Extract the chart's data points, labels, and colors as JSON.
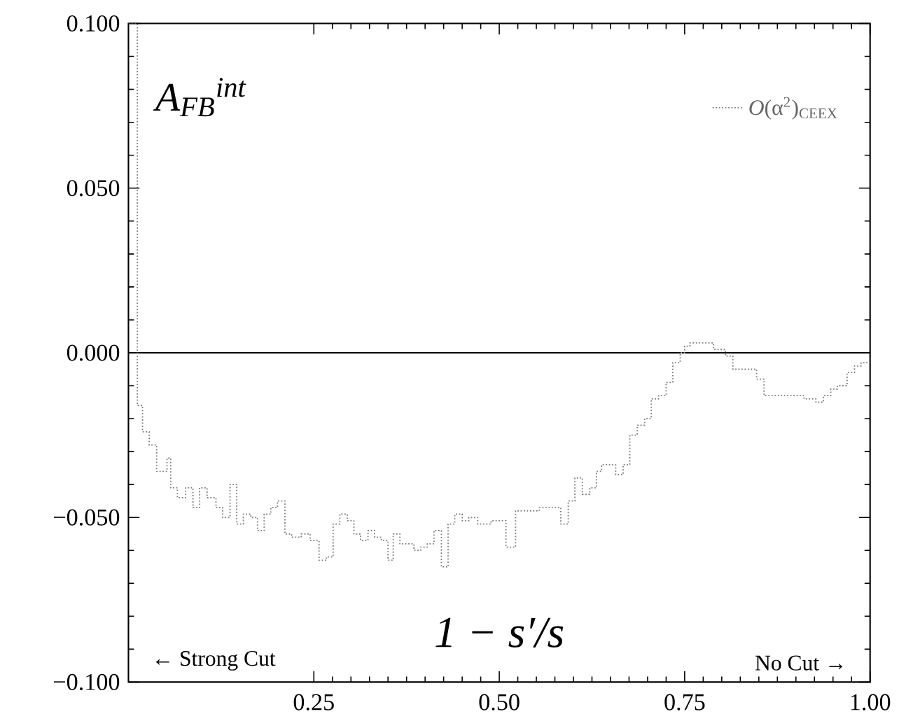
{
  "chart_data": {
    "type": "step",
    "ylabel": "A$_{FB}$$^{int}$",
    "xlabel": "1 − s′/s",
    "annotations": [
      "← Strong Cut",
      "No Cut →"
    ],
    "xlim": [
      0,
      1
    ],
    "ylim": [
      -0.1,
      0.1
    ],
    "xticks": [
      0.25,
      {
        "value": 0.5,
        "label": "0.50"
      },
      0.75,
      {
        "value": 1,
        "label": "1.00"
      }
    ],
    "yticks": [
      {
        "value": -0.1,
        "label": "−0.100"
      },
      {
        "value": -0.05,
        "label": "−0.050"
      },
      {
        "value": 0,
        "label": "0.000"
      },
      {
        "value": 0.05,
        "label": "0.050"
      },
      {
        "value": 0.1,
        "label": "0.100"
      }
    ],
    "ref_lines": [
      {
        "axis": "y",
        "value": 0,
        "color": "#000000"
      }
    ],
    "legend": "top right",
    "line_style": "dotted",
    "grid": false,
    "x": [
      0.0,
      0.012,
      0.019,
      0.028,
      0.038,
      0.052,
      0.057,
      0.066,
      0.077,
      0.087,
      0.096,
      0.106,
      0.118,
      0.127,
      0.137,
      0.146,
      0.155,
      0.165,
      0.174,
      0.183,
      0.192,
      0.201,
      0.211,
      0.22,
      0.233,
      0.245,
      0.257,
      0.267,
      0.276,
      0.285,
      0.295,
      0.304,
      0.313,
      0.323,
      0.332,
      0.341,
      0.35,
      0.357,
      0.366,
      0.375,
      0.385,
      0.394,
      0.403,
      0.412,
      0.422,
      0.431,
      0.44,
      0.45,
      0.459,
      0.471,
      0.489,
      0.509,
      0.522,
      0.554,
      0.583,
      0.593,
      0.602,
      0.612,
      0.622,
      0.631,
      0.638,
      0.657,
      0.667,
      0.676,
      0.686,
      0.696,
      0.705,
      0.715,
      0.725,
      0.734,
      0.744,
      0.75,
      0.757,
      0.776,
      0.789,
      0.805,
      0.815,
      0.847,
      0.857,
      0.901,
      0.911,
      0.927,
      0.937,
      0.947,
      0.956,
      0.969,
      0.979,
      0.988,
      1.0
    ],
    "series": [
      {
        "name": "*O*(α$^{2}$)$_{CEEX}$",
        "color": "#808080",
        "values": [
          0.1,
          -0.016,
          -0.024,
          -0.028,
          -0.036,
          -0.032,
          -0.041,
          -0.044,
          -0.041,
          -0.047,
          -0.041,
          -0.044,
          -0.047,
          -0.05,
          -0.04,
          -0.052,
          -0.049,
          -0.05,
          -0.054,
          -0.049,
          -0.047,
          -0.045,
          -0.055,
          -0.056,
          -0.055,
          -0.057,
          -0.063,
          -0.062,
          -0.052,
          -0.049,
          -0.051,
          -0.055,
          -0.057,
          -0.054,
          -0.056,
          -0.057,
          -0.063,
          -0.055,
          -0.058,
          -0.058,
          -0.06,
          -0.059,
          -0.058,
          -0.054,
          -0.065,
          -0.052,
          -0.049,
          -0.051,
          -0.05,
          -0.052,
          -0.051,
          -0.059,
          -0.048,
          -0.047,
          -0.052,
          -0.045,
          -0.038,
          -0.043,
          -0.041,
          -0.036,
          -0.034,
          -0.037,
          -0.034,
          -0.025,
          -0.022,
          -0.02,
          -0.014,
          -0.013,
          -0.009,
          -0.003,
          0.0,
          0.002,
          0.003,
          0.003,
          0.001,
          -0.001,
          -0.005,
          -0.008,
          -0.013,
          -0.013,
          -0.014,
          -0.015,
          -0.013,
          -0.011,
          -0.01,
          -0.006,
          -0.004,
          -0.003,
          -0.003
        ]
      }
    ]
  }
}
